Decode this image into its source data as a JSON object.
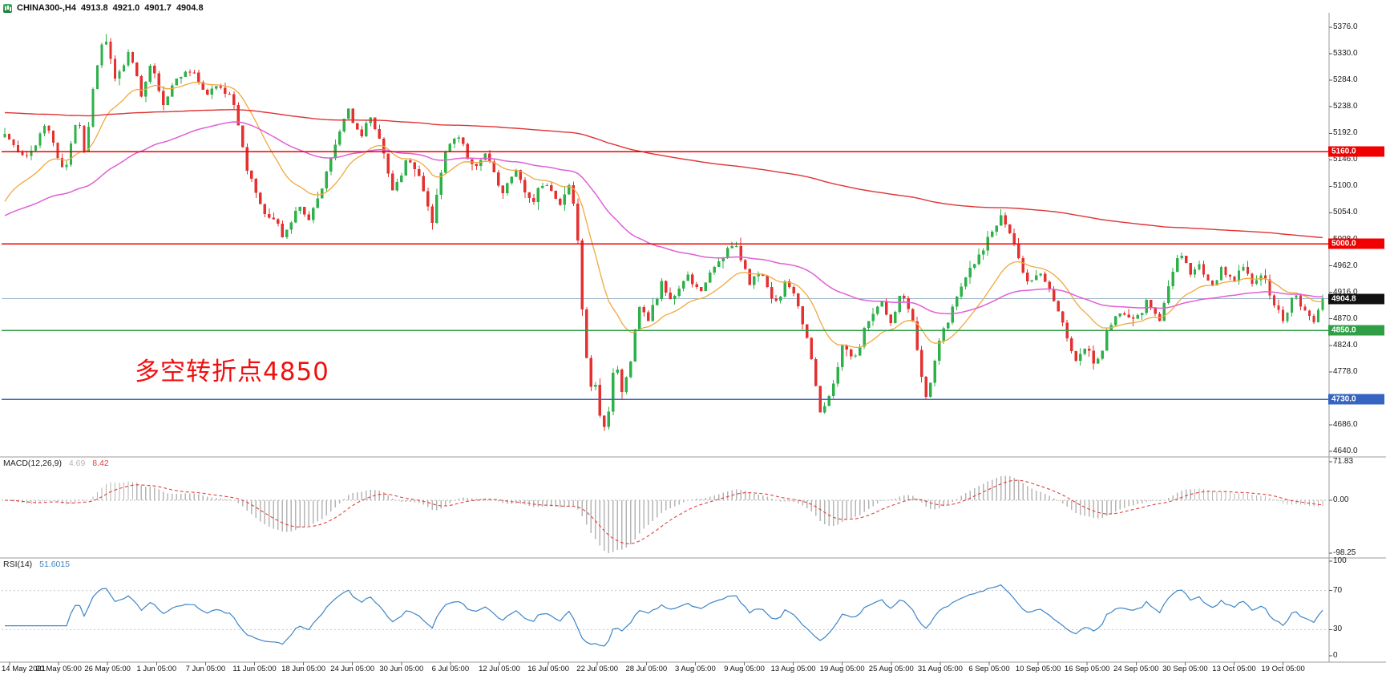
{
  "quote_bar": {
    "symbol": "CHINA300-,H4",
    "open": "4913.8",
    "high": "4921.0",
    "low": "4901.7",
    "close": "4904.8"
  },
  "chart_data": {
    "type": "candlestick",
    "symbol": "CHINA300-",
    "timeframe": "H4",
    "quote": {
      "open": 4913.8,
      "high": 4921.0,
      "low": 4901.7,
      "close": 4904.8
    },
    "price_axis": {
      "max": 5376.0,
      "min": 4640.0,
      "tick_step": 46.0,
      "tick_labels": [
        "5376.0",
        "5330.0",
        "5284.0",
        "5238.0",
        "5192.0",
        "5146.0",
        "5100.0",
        "5054.0",
        "5008.0",
        "4962.0",
        "4916.0",
        "4870.0",
        "4824.0",
        "4778.0",
        "4732.0",
        "4686.0",
        "4640.0"
      ]
    },
    "time_axis_labels": [
      "14 May 2021",
      "20 May 05:00",
      "26 May 05:00",
      "1 Jun 05:00",
      "7 Jun 05:00",
      "11 Jun 05:00",
      "18 Jun 05:00",
      "24 Jun 05:00",
      "30 Jun 05:00",
      "6 Jul 05:00",
      "12 Jul 05:00",
      "16 Jul 05:00",
      "22 Jul 05:00",
      "28 Jul 05:00",
      "3 Aug 05:00",
      "9 Aug 05:00",
      "13 Aug 05:00",
      "19 Aug 05:00",
      "25 Aug 05:00",
      "31 Aug 05:00",
      "6 Sep 05:00",
      "10 Sep 05:00",
      "16 Sep 05:00",
      "24 Sep 05:00",
      "30 Sep 05:00",
      "13 Oct 05:00",
      "19 Oct 05:00"
    ],
    "levels": [
      {
        "label": "5160.0",
        "value": 5160.0,
        "tag_color": "#f00000",
        "line_color": "#f00000",
        "line_width": 1.6,
        "kind": "resistance"
      },
      {
        "label": "5000.0",
        "value": 5000.0,
        "tag_color": "#f00000",
        "line_color": "#f00000",
        "line_width": 1.6,
        "kind": "resistance"
      },
      {
        "label": "4904.8",
        "value": 4904.8,
        "tag_color": "#111111",
        "line_color": "#9cb6c9",
        "line_width": 1.0,
        "kind": "current"
      },
      {
        "label": "4850.0",
        "value": 4850.0,
        "tag_color": "#2f9e44",
        "line_color": "#2f9e44",
        "line_width": 1.6,
        "kind": "support"
      },
      {
        "label": "4730.0",
        "value": 4730.0,
        "tag_color": "#3565c0",
        "line_color": "#3565c0",
        "line_width": 1.6,
        "kind": "support"
      }
    ],
    "moving_averages": [
      {
        "name": "ma-fast-orange",
        "color": "#efa93f",
        "approx_period": 18,
        "start_value": 5060,
        "width": 1.3
      },
      {
        "name": "ma-mid-magenta",
        "color": "#e05fd5",
        "approx_period": 70,
        "start_value": 5045,
        "width": 1.5
      },
      {
        "name": "ma-slow-red",
        "color": "#df3333",
        "approx_period": 360,
        "start_value": 5228,
        "width": 1.4
      }
    ],
    "macd": {
      "label": "MACD(12,26,9)",
      "params": [
        12,
        26,
        9
      ],
      "macd_value": "4.69",
      "signal_value": "8.42",
      "scale_labels": [
        "71.83",
        "0.00",
        "-98.25"
      ],
      "histogram_color": "#b5b5b5",
      "signal_color": "#e04040"
    },
    "rsi": {
      "label": "RSI(14)",
      "period": 14,
      "value": "51.6015",
      "scale_labels": [
        "100",
        "70",
        "30",
        "0"
      ],
      "guide_levels": [
        70,
        30
      ],
      "line_color": "#3d85c8"
    },
    "annotation": {
      "text": "多空转折点4850",
      "color": "#f01010"
    },
    "colors": {
      "background": "#ffffff",
      "up_candle": "#2eb14a",
      "down_candle": "#e53030",
      "panel_border": "#9a9a9a",
      "axis_text": "#1a1a1a",
      "current_price_line": "#9cb6c9"
    },
    "candle_count": 300,
    "price_path_anchors": [
      [
        0.0,
        5185
      ],
      [
        0.018,
        5150
      ],
      [
        0.032,
        5210
      ],
      [
        0.045,
        5120
      ],
      [
        0.055,
        5225
      ],
      [
        0.061,
        5150
      ],
      [
        0.068,
        5290
      ],
      [
        0.076,
        5365
      ],
      [
        0.084,
        5290
      ],
      [
        0.094,
        5330
      ],
      [
        0.104,
        5260
      ],
      [
        0.112,
        5315
      ],
      [
        0.12,
        5235
      ],
      [
        0.13,
        5290
      ],
      [
        0.142,
        5305
      ],
      [
        0.152,
        5255
      ],
      [
        0.163,
        5280
      ],
      [
        0.174,
        5245
      ],
      [
        0.184,
        5130
      ],
      [
        0.196,
        5060
      ],
      [
        0.206,
        5040
      ],
      [
        0.212,
        5012
      ],
      [
        0.222,
        5065
      ],
      [
        0.232,
        5045
      ],
      [
        0.243,
        5110
      ],
      [
        0.252,
        5180
      ],
      [
        0.26,
        5240
      ],
      [
        0.269,
        5185
      ],
      [
        0.277,
        5220
      ],
      [
        0.287,
        5165
      ],
      [
        0.295,
        5085
      ],
      [
        0.305,
        5150
      ],
      [
        0.315,
        5110
      ],
      [
        0.324,
        5035
      ],
      [
        0.334,
        5155
      ],
      [
        0.344,
        5190
      ],
      [
        0.356,
        5125
      ],
      [
        0.366,
        5160
      ],
      [
        0.377,
        5090
      ],
      [
        0.388,
        5130
      ],
      [
        0.399,
        5070
      ],
      [
        0.41,
        5110
      ],
      [
        0.42,
        5065
      ],
      [
        0.428,
        5100
      ],
      [
        0.434,
        5040
      ],
      [
        0.438,
        4890
      ],
      [
        0.443,
        4755
      ],
      [
        0.448,
        4760
      ],
      [
        0.453,
        4672
      ],
      [
        0.458,
        4700
      ],
      [
        0.463,
        4800
      ],
      [
        0.468,
        4748
      ],
      [
        0.474,
        4775
      ],
      [
        0.481,
        4895
      ],
      [
        0.489,
        4870
      ],
      [
        0.498,
        4930
      ],
      [
        0.507,
        4905
      ],
      [
        0.517,
        4950
      ],
      [
        0.527,
        4915
      ],
      [
        0.537,
        4955
      ],
      [
        0.547,
        4988
      ],
      [
        0.556,
        4995
      ],
      [
        0.565,
        4930
      ],
      [
        0.574,
        4955
      ],
      [
        0.584,
        4890
      ],
      [
        0.594,
        4938
      ],
      [
        0.604,
        4872
      ],
      [
        0.611,
        4820
      ],
      [
        0.619,
        4706
      ],
      [
        0.627,
        4742
      ],
      [
        0.636,
        4830
      ],
      [
        0.645,
        4802
      ],
      [
        0.655,
        4868
      ],
      [
        0.664,
        4905
      ],
      [
        0.672,
        4860
      ],
      [
        0.681,
        4918
      ],
      [
        0.689,
        4868
      ],
      [
        0.695,
        4778
      ],
      [
        0.7,
        4728
      ],
      [
        0.707,
        4820
      ],
      [
        0.716,
        4868
      ],
      [
        0.724,
        4920
      ],
      [
        0.733,
        4962
      ],
      [
        0.741,
        4990
      ],
      [
        0.749,
        5018
      ],
      [
        0.756,
        5048
      ],
      [
        0.763,
        5018
      ],
      [
        0.77,
        4962
      ],
      [
        0.778,
        4930
      ],
      [
        0.787,
        4955
      ],
      [
        0.796,
        4900
      ],
      [
        0.804,
        4850
      ],
      [
        0.812,
        4796
      ],
      [
        0.82,
        4822
      ],
      [
        0.828,
        4788
      ],
      [
        0.838,
        4858
      ],
      [
        0.847,
        4885
      ],
      [
        0.857,
        4868
      ],
      [
        0.867,
        4900
      ],
      [
        0.876,
        4866
      ],
      [
        0.884,
        4930
      ],
      [
        0.891,
        4982
      ],
      [
        0.899,
        4950
      ],
      [
        0.907,
        4966
      ],
      [
        0.915,
        4920
      ],
      [
        0.923,
        4954
      ],
      [
        0.931,
        4936
      ],
      [
        0.939,
        4960
      ],
      [
        0.947,
        4926
      ],
      [
        0.955,
        4946
      ],
      [
        0.963,
        4896
      ],
      [
        0.97,
        4866
      ],
      [
        0.978,
        4910
      ],
      [
        0.986,
        4886
      ],
      [
        0.993,
        4868
      ],
      [
        1.0,
        4904.8
      ]
    ],
    "render_estimation": {
      "seed": 20211019,
      "close_noise": 14,
      "wick_noise": 16,
      "note": "candles synthesized from price_path_anchors read off the screenshot; per-candle OHLC is estimated"
    }
  }
}
